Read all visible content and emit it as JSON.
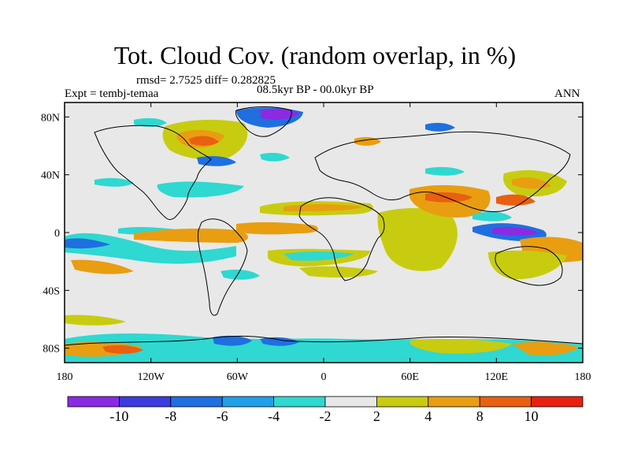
{
  "title": "Tot. Cloud Cov. (random overlap, in %)",
  "stats": "rmsd= 2.7525 diff= 0.282825",
  "experiment": "Expt = tembj-temaa",
  "period": "08.5kyr BP - 00.0kyr BP",
  "season": "ANN",
  "axes": {
    "lon_ticks": [
      "180",
      "120W",
      "60W",
      "0",
      "60E",
      "120E",
      "180"
    ],
    "lat_ticks": [
      "80N",
      "40N",
      "0",
      "40S",
      "80S"
    ]
  },
  "colorbar": {
    "labels": [
      "-10",
      "-8",
      "-6",
      "-4",
      "-2",
      "2",
      "4",
      "8",
      "10"
    ],
    "colors": [
      "#8a2be2",
      "#3b3be0",
      "#1f6fe0",
      "#1fa0e8",
      "#2fd8d0",
      "#e8e8e8",
      "#c8cc10",
      "#e89e10",
      "#e86010",
      "#e82010"
    ]
  },
  "field_colors": {
    "background": "#e8e8e8",
    "land_outline": "#000000"
  }
}
